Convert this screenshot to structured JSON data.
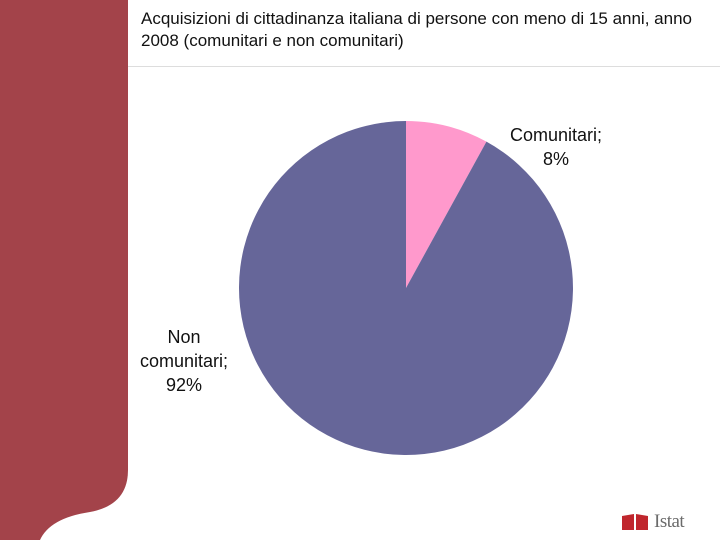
{
  "slide": {
    "title": "Acquisizioni di cittadinanza italiana di persone con meno di 15 anni, anno 2008 (comunitari e non comunitari)",
    "logo_text": "Istat",
    "sidebar_color": "#a3434a"
  },
  "chart_data": {
    "type": "pie",
    "title": "Acquisizioni di cittadinanza italiana di persone con meno di 15 anni, anno 2008 (comunitari e non comunitari)",
    "slices": [
      {
        "label": "Comunitari",
        "value": 8,
        "label_lines": [
          "Comunitari;",
          "8%"
        ],
        "color": "#ff99cc"
      },
      {
        "label": "Non comunitari",
        "value": 92,
        "label_lines": [
          "Non",
          "comunitari;",
          "92%"
        ],
        "color": "#666699"
      }
    ],
    "start_angle_deg": 0,
    "direction": "clockwise"
  }
}
